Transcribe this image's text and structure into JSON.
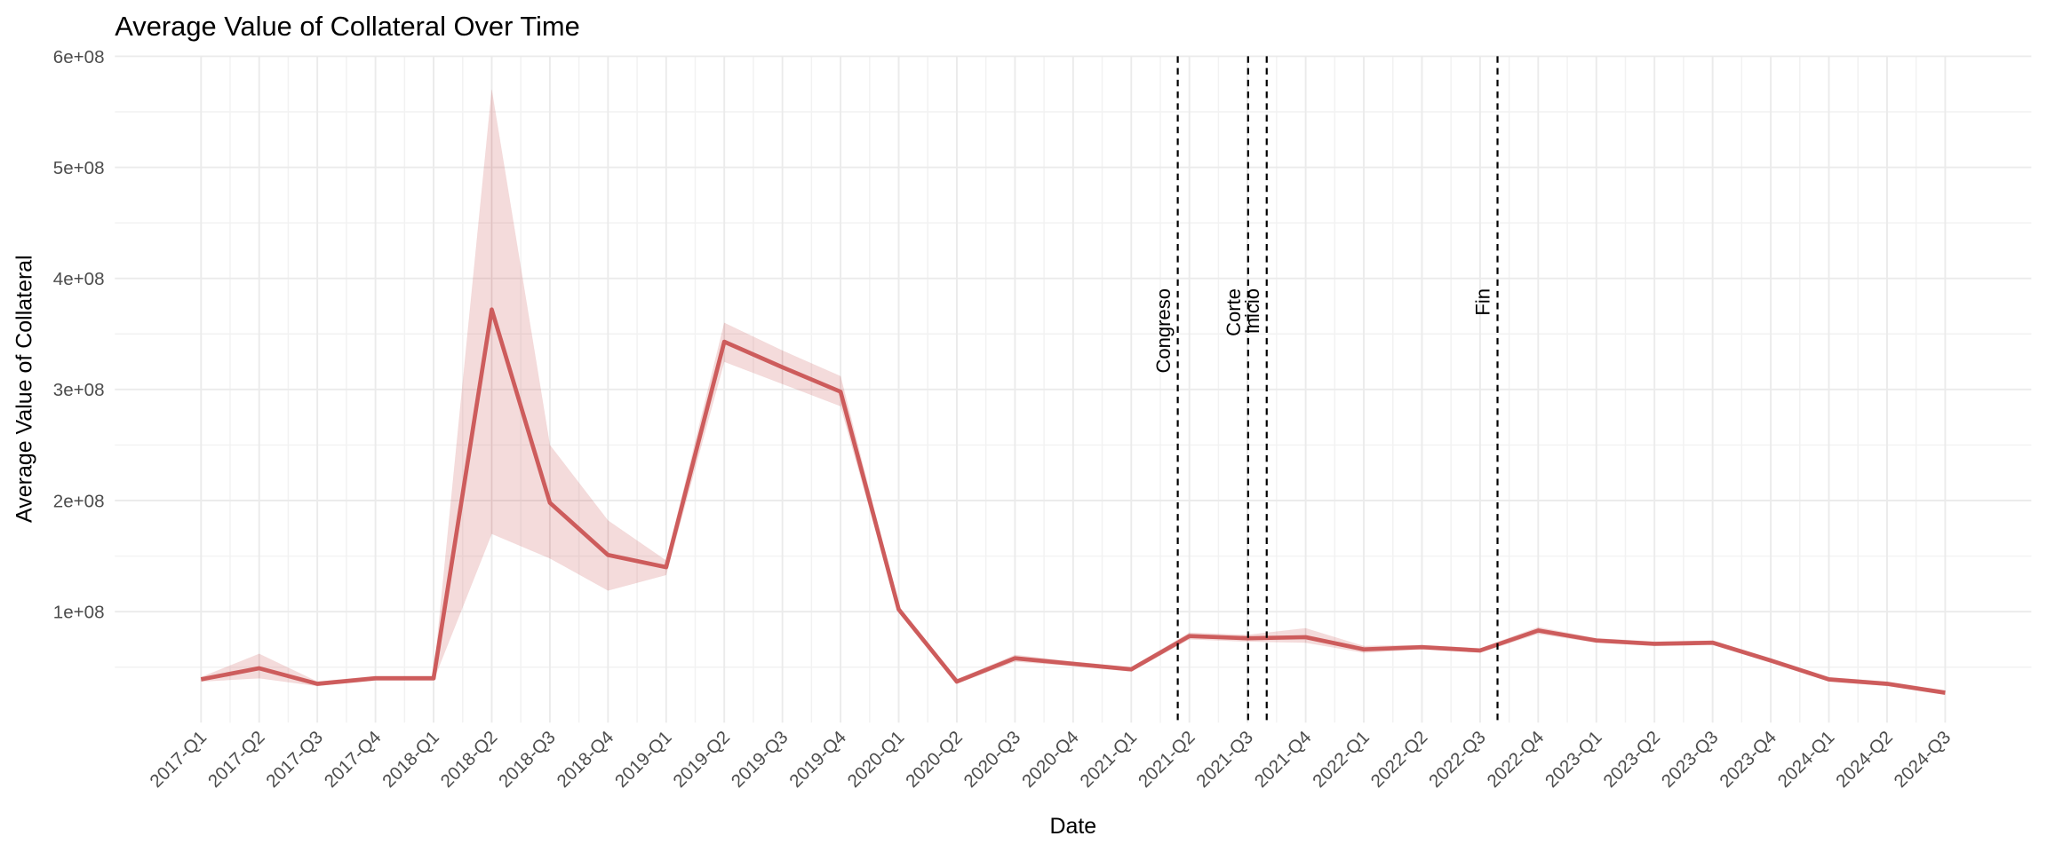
{
  "chart_data": {
    "type": "line",
    "title": "Average Value of Collateral Over Time",
    "x_label": "Date",
    "y_label": "Average Value of Collateral",
    "categories": [
      "2017-Q1",
      "2017-Q2",
      "2017-Q3",
      "2017-Q4",
      "2018-Q1",
      "2018-Q2",
      "2018-Q3",
      "2018-Q4",
      "2019-Q1",
      "2019-Q2",
      "2019-Q3",
      "2019-Q4",
      "2020-Q1",
      "2020-Q2",
      "2020-Q3",
      "2020-Q4",
      "2021-Q1",
      "2021-Q2",
      "2021-Q3",
      "2021-Q4",
      "2022-Q1",
      "2022-Q2",
      "2022-Q3",
      "2022-Q4",
      "2023-Q1",
      "2023-Q2",
      "2023-Q3",
      "2023-Q4",
      "2024-Q1",
      "2024-Q2",
      "2024-Q3"
    ],
    "values": [
      39000000,
      49000000,
      35000000,
      40000000,
      40000000,
      372000000,
      198000000,
      151000000,
      140000000,
      343000000,
      320000000,
      298000000,
      102000000,
      37000000,
      58000000,
      53000000,
      48000000,
      78000000,
      76000000,
      77000000,
      66000000,
      68000000,
      65000000,
      83000000,
      74000000,
      71000000,
      72000000,
      56000000,
      39000000,
      35000000,
      27000000
    ],
    "upper": [
      41000000,
      62000000,
      37000000,
      42000000,
      42000000,
      570000000,
      250000000,
      182000000,
      146000000,
      360000000,
      335000000,
      312000000,
      105000000,
      39000000,
      61000000,
      55000000,
      50000000,
      81000000,
      79000000,
      85000000,
      69000000,
      70000000,
      67000000,
      86000000,
      76000000,
      73000000,
      74000000,
      58000000,
      41000000,
      37000000,
      29000000
    ],
    "lower": [
      37000000,
      40000000,
      33000000,
      38000000,
      38000000,
      170000000,
      148000000,
      119000000,
      133000000,
      325000000,
      305000000,
      285000000,
      99000000,
      35000000,
      55000000,
      51000000,
      46000000,
      75000000,
      73000000,
      72000000,
      63000000,
      66000000,
      63000000,
      80000000,
      72000000,
      69000000,
      70000000,
      54000000,
      37000000,
      33000000,
      25000000
    ],
    "color": "#cd5c5c",
    "ylim": [
      0,
      600000000
    ],
    "yticks": [
      {
        "value": 100000000,
        "label": "1e+08"
      },
      {
        "value": 200000000,
        "label": "2e+08"
      },
      {
        "value": 300000000,
        "label": "3e+08"
      },
      {
        "value": 400000000,
        "label": "4e+08"
      },
      {
        "value": 500000000,
        "label": "5e+08"
      },
      {
        "value": 600000000,
        "label": "6e+08"
      }
    ],
    "grid": true,
    "vlines": [
      {
        "label": "Congreso",
        "x": 16.8
      },
      {
        "label": "Corte",
        "x": 18.01
      },
      {
        "label": "Inicio",
        "x": 18.33
      },
      {
        "label": "Fin",
        "x": 22.3
      }
    ]
  }
}
